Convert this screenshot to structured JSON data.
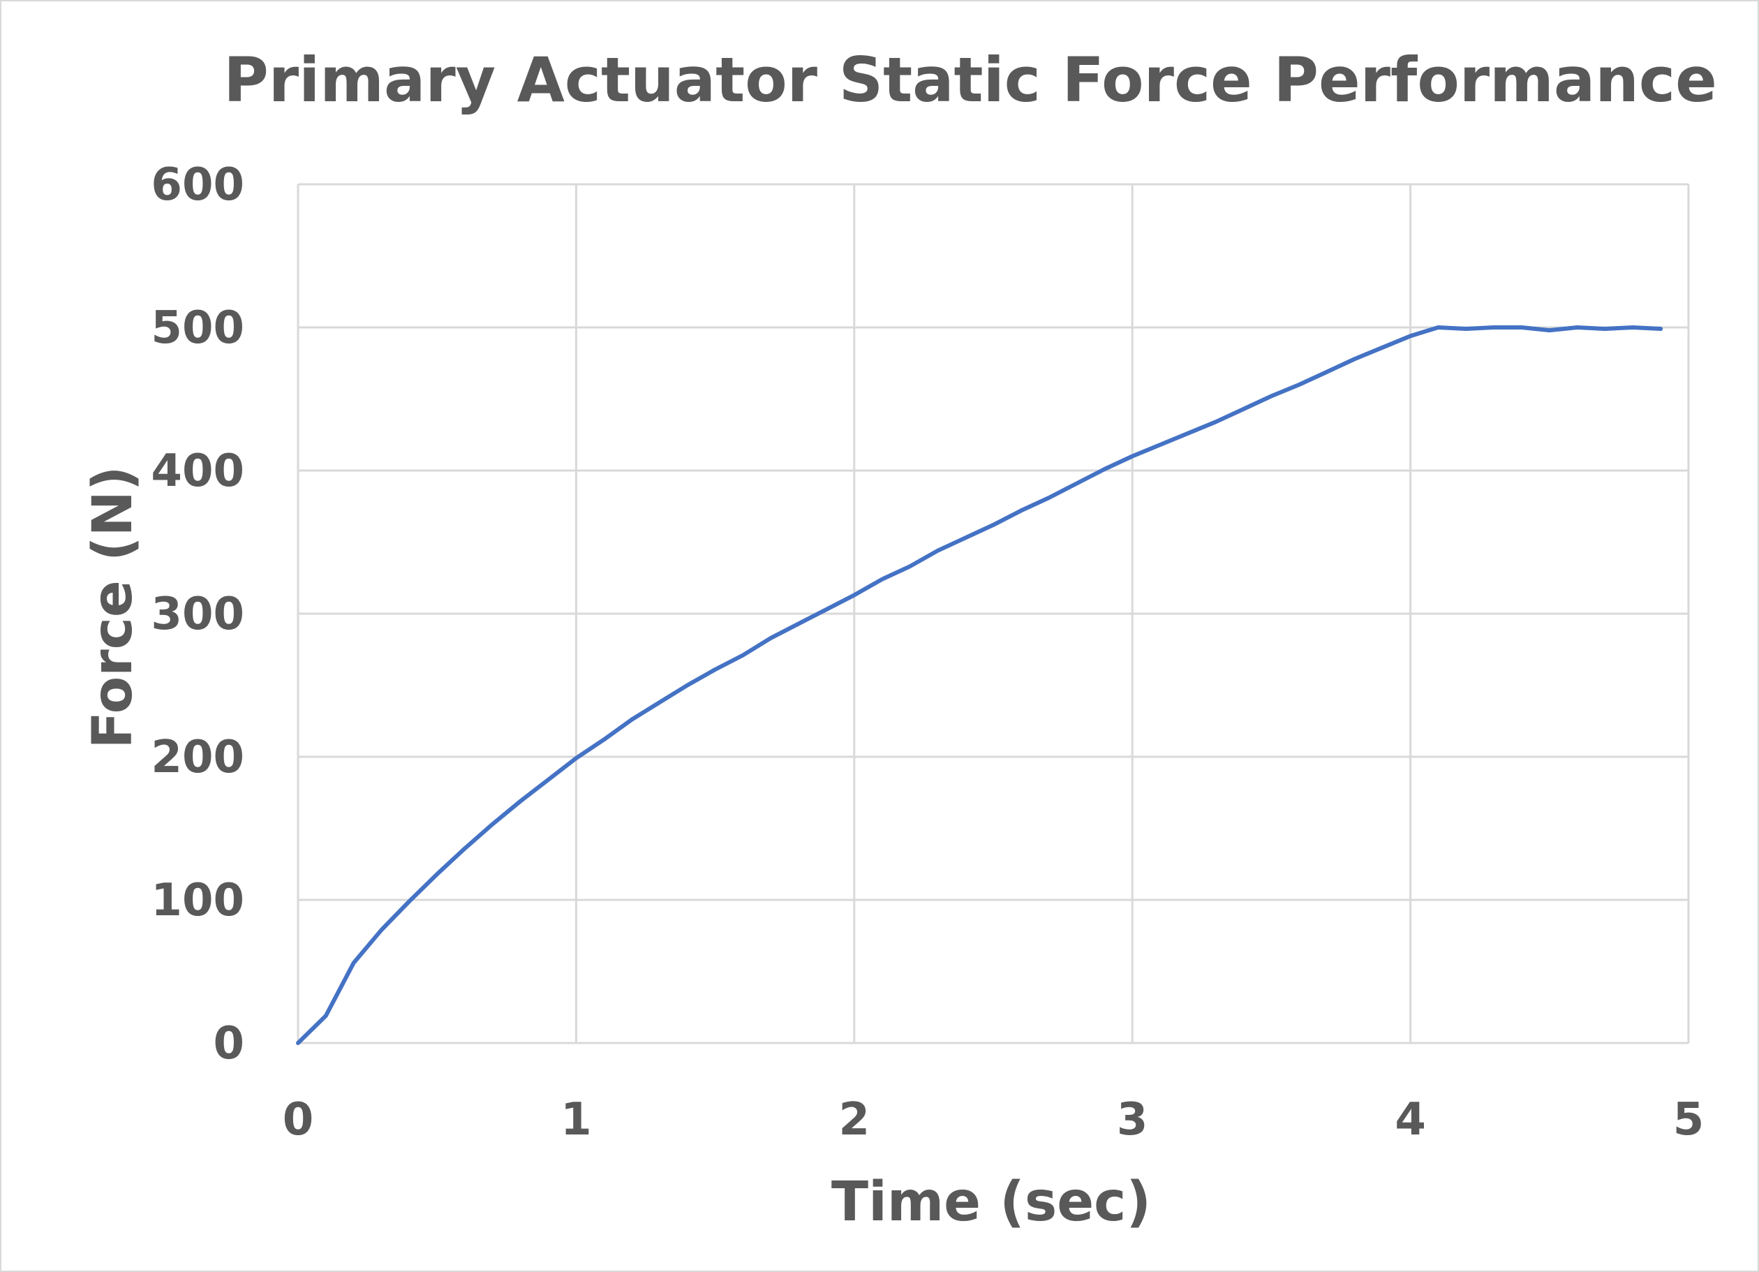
{
  "chart_data": {
    "type": "line",
    "title": "Primary Actuator Static Force Performance",
    "xlabel": "Time (sec)",
    "ylabel": "Force (N)",
    "xlim": [
      0,
      5
    ],
    "ylim": [
      0,
      600
    ],
    "xticks": [
      "0",
      "1",
      "2",
      "3",
      "4",
      "5"
    ],
    "yticks": [
      "0",
      "100",
      "200",
      "300",
      "400",
      "500",
      "600"
    ],
    "grid": true,
    "legend": "none",
    "colors": {
      "series": "#4472c4",
      "grid": "#d9d9d9",
      "text": "#595959"
    },
    "series": [
      {
        "x": [
          0,
          0.1,
          0.2,
          0.3,
          0.4,
          0.5,
          0.6,
          0.7,
          0.8,
          0.9,
          1.0,
          1.1,
          1.2,
          1.3,
          1.4,
          1.5,
          1.6,
          1.7,
          1.8,
          1.9,
          2.0,
          2.1,
          2.2,
          2.3,
          2.4,
          2.5,
          2.6,
          2.7,
          2.8,
          2.9,
          3.0,
          3.1,
          3.2,
          3.3,
          3.4,
          3.5,
          3.6,
          3.7,
          3.8,
          3.9,
          4.0,
          4.1,
          4.2,
          4.3,
          4.4,
          4.5,
          4.6,
          4.7,
          4.8,
          4.9
        ],
        "y": [
          0,
          19,
          56,
          79,
          99,
          118,
          136,
          153,
          169,
          184,
          199,
          212,
          226,
          238,
          250,
          261,
          271,
          283,
          293,
          303,
          313,
          324,
          333,
          344,
          353,
          362,
          372,
          381,
          391,
          401,
          410,
          418,
          426,
          434,
          443,
          452,
          460,
          469,
          478,
          486,
          494,
          500,
          499,
          500,
          500,
          498,
          500,
          499,
          500,
          499
        ]
      }
    ]
  }
}
